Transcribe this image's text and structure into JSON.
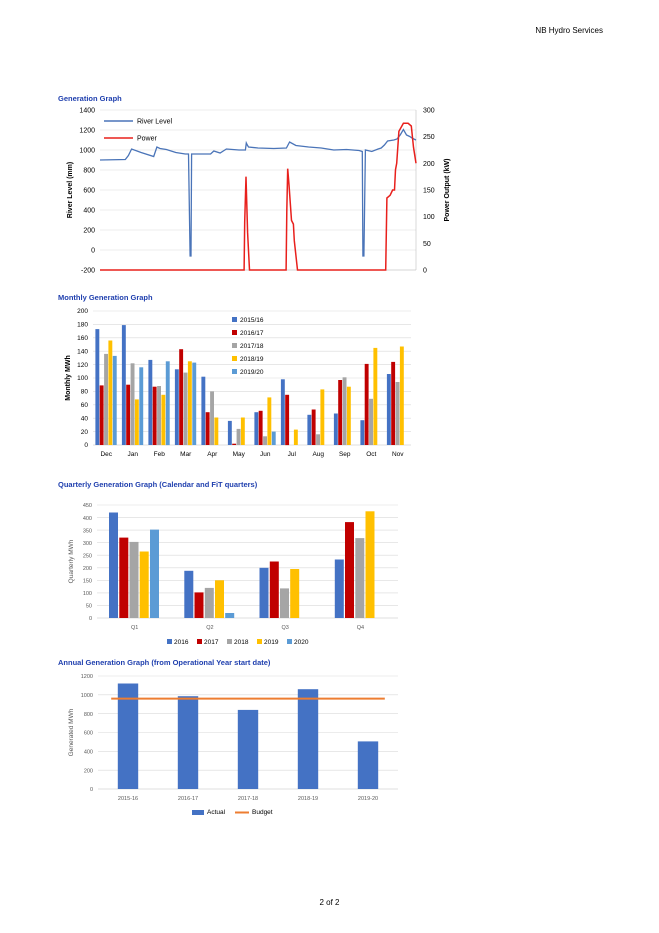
{
  "header": {
    "company": "NB Hydro Services"
  },
  "footer": {
    "page": "2 of 2"
  },
  "colors": {
    "blue": "#4472c4",
    "red": "#c00000",
    "gray": "#a5a5a5",
    "yellow": "#ffc000",
    "lightblue": "#5b9bd5",
    "orange": "#ed7d31",
    "river": "#4a74b8",
    "power": "#e8201c"
  },
  "sections": {
    "generation": "Generation Graph",
    "monthly": "Monthly Generation Graph",
    "quarterly": "Quarterly Generation Graph (Calendar and FiT quarters)",
    "annual": "Annual Generation Graph (from Operational Year start date)"
  },
  "chart_data": [
    {
      "id": "generation",
      "type": "line",
      "ylabel": "River Level (mm)",
      "y2label": "Power Output (kW)",
      "ylim": [
        -200,
        1400
      ],
      "y2lim": [
        0,
        300
      ],
      "yticks": [
        "-200",
        "0",
        "200",
        "400",
        "600",
        "800",
        "1000",
        "1200",
        "1400"
      ],
      "y2ticks": [
        "0",
        "50",
        "100",
        "150",
        "200",
        "250",
        "300"
      ],
      "grid": true,
      "legend": "top-left",
      "series": [
        {
          "name": "River Level",
          "axis": "left",
          "color": "#4a74b8",
          "x": [
            0,
            8,
            9,
            10,
            13,
            17,
            18,
            19,
            21,
            24,
            27,
            28,
            28.5,
            28.8,
            29,
            30,
            33,
            35,
            36,
            38,
            40,
            44,
            46,
            46.3,
            46.6,
            47,
            50,
            55,
            59,
            60,
            62,
            66,
            70,
            74,
            78,
            82,
            83,
            83.2,
            83.5,
            84,
            86,
            88,
            89,
            90,
            91,
            93,
            94,
            95,
            96,
            97,
            98,
            99,
            100
          ],
          "y": [
            900,
            905,
            945,
            1010,
            975,
            935,
            1030,
            1015,
            1005,
            975,
            960,
            960,
            -60,
            -60,
            960,
            960,
            960,
            960,
            990,
            970,
            1010,
            1000,
            1000,
            1070,
            1050,
            1030,
            1020,
            1015,
            1020,
            1080,
            1045,
            1030,
            1020,
            1000,
            1005,
            995,
            985,
            -60,
            -60,
            1000,
            985,
            1010,
            1020,
            1050,
            1090,
            1100,
            1110,
            1150,
            1205,
            1150,
            1135,
            1115,
            1100
          ]
        },
        {
          "name": "Power",
          "axis": "right",
          "color": "#e8201c",
          "x": [
            0,
            45.6,
            45.8,
            46.2,
            46.7,
            47.3,
            58.9,
            59.1,
            59.4,
            59.8,
            60.6,
            61.2,
            61.5,
            62.5,
            90.4,
            90.8,
            91.8,
            92.6,
            93.2,
            93.5,
            93.9,
            94.6,
            96,
            97.5,
            98.5,
            99.2,
            100
          ],
          "y": [
            0,
            0,
            90,
            175,
            70,
            0,
            0,
            110,
            190,
            160,
            93,
            86,
            55,
            0,
            0,
            135,
            140,
            150,
            150,
            188,
            200,
            260,
            275,
            275,
            270,
            230,
            200
          ]
        }
      ]
    },
    {
      "id": "monthly",
      "type": "bar",
      "ylabel": "Monthly MWh",
      "ylim": [
        0,
        200
      ],
      "yticks": [
        "0",
        "20",
        "40",
        "60",
        "80",
        "100",
        "120",
        "140",
        "160",
        "180",
        "200"
      ],
      "categories": [
        "Dec",
        "Jan",
        "Feb",
        "Mar",
        "Apr",
        "May",
        "Jun",
        "Jul",
        "Aug",
        "Sep",
        "Oct",
        "Nov"
      ],
      "legend": "inside-top-center",
      "grid": true,
      "series": [
        {
          "name": "2015/16",
          "color": "#4472c4",
          "values": [
            173,
            179,
            127,
            113,
            102,
            36,
            49,
            98,
            45,
            47,
            37,
            106
          ]
        },
        {
          "name": "2016/17",
          "color": "#c00000",
          "values": [
            89,
            90,
            87,
            143,
            49,
            2,
            51,
            75,
            53,
            97,
            121,
            124
          ]
        },
        {
          "name": "2017/18",
          "color": "#a5a5a5",
          "values": [
            136,
            122,
            88,
            108,
            80,
            24,
            13,
            0,
            16,
            101,
            69,
            94
          ]
        },
        {
          "name": "2018/19",
          "color": "#ffc000",
          "values": [
            156,
            68,
            75,
            125,
            41,
            41,
            71,
            23,
            83,
            87,
            145,
            147
          ]
        },
        {
          "name": "2019/20",
          "color": "#5b9bd5",
          "values": [
            133,
            116,
            125,
            123,
            0,
            0,
            20,
            0,
            0,
            0,
            0,
            0
          ]
        }
      ]
    },
    {
      "id": "quarterly",
      "type": "bar",
      "ylabel": "Quarterly MWh",
      "ylim": [
        0,
        450
      ],
      "yticks": [
        "0",
        "50",
        "100",
        "150",
        "200",
        "250",
        "300",
        "350",
        "400",
        "450"
      ],
      "categories": [
        "Q1",
        "Q2",
        "Q3",
        "Q4"
      ],
      "legend": "bottom",
      "grid": true,
      "series": [
        {
          "name": "2016",
          "color": "#4472c4",
          "values": [
            420,
            188,
            200,
            233
          ]
        },
        {
          "name": "2017",
          "color": "#c00000",
          "values": [
            320,
            102,
            225,
            382
          ]
        },
        {
          "name": "2018",
          "color": "#a5a5a5",
          "values": [
            303,
            120,
            118,
            318
          ]
        },
        {
          "name": "2019",
          "color": "#ffc000",
          "values": [
            265,
            150,
            195,
            425
          ]
        },
        {
          "name": "2020",
          "color": "#5b9bd5",
          "values": [
            352,
            20,
            0,
            0
          ]
        }
      ]
    },
    {
      "id": "annual",
      "type": "bar",
      "ylabel": "Generated MWh",
      "ylim": [
        0,
        1200
      ],
      "yticks": [
        "0",
        "200",
        "400",
        "600",
        "800",
        "1000",
        "1200"
      ],
      "categories": [
        "2015-16",
        "2016-17",
        "2017-18",
        "2018-19",
        "2019-20"
      ],
      "legend": "bottom",
      "grid": true,
      "series": [
        {
          "name": "Actual",
          "color": "#4472c4",
          "values": [
            1120,
            985,
            840,
            1060,
            505
          ]
        },
        {
          "name": "Budget",
          "color": "#ed7d31",
          "type": "line",
          "values": [
            960,
            960,
            960,
            960,
            960
          ]
        }
      ]
    }
  ]
}
